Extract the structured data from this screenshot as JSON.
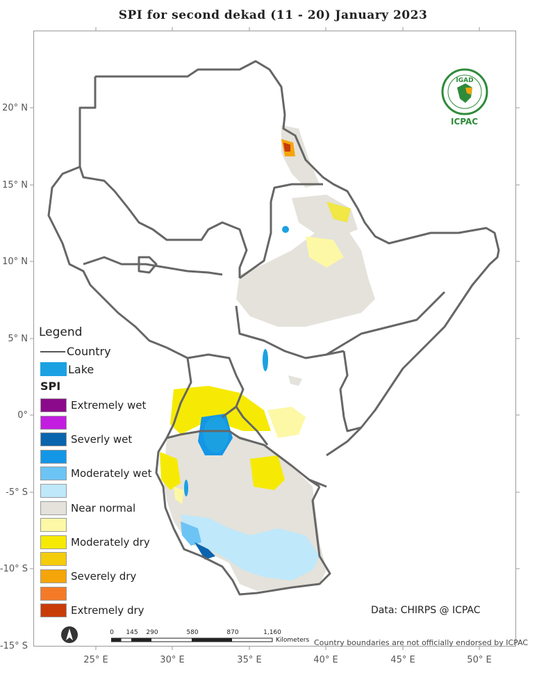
{
  "title": "SPI   for    second  dekad (11 - 20)  January 2023",
  "lat_labels": [
    "20° N",
    "15° N",
    "10° N",
    "5° N",
    "0°",
    "-5° S",
    "-10° S",
    "-15° S"
  ],
  "lon_labels": [
    "25° E",
    "30° E",
    "35° E",
    "40° E",
    "45° E",
    "50° E"
  ],
  "legend": {
    "title": "Legend",
    "country": "Country",
    "lake": "Lake",
    "spi_title": "SPI",
    "classes": [
      {
        "label": "Extremely wet",
        "color": "#8b0a8b"
      },
      {
        "label": "",
        "color": "#c31ee0"
      },
      {
        "label": "Severly wet",
        "color": "#0a64ae"
      },
      {
        "label": "",
        "color": "#1496e6"
      },
      {
        "label": "Moderately wet",
        "color": "#6cc4f5"
      },
      {
        "label": "",
        "color": "#bfe8fa"
      },
      {
        "label": "Near normal",
        "color": "#e4e2db"
      },
      {
        "label": "",
        "color": "#fcf8a6"
      },
      {
        "label": "Moderately dry",
        "color": "#f6ea05"
      },
      {
        "label": "",
        "color": "#f5cc0a"
      },
      {
        "label": "Severely dry",
        "color": "#f5a50a"
      },
      {
        "label": "",
        "color": "#f57a28"
      },
      {
        "label": "Extremely dry",
        "color": "#c83c0a"
      }
    ]
  },
  "credit": "Data: CHIRPS @ ICPAC",
  "disclaimer": "Country boundaries are not officially endorsed by ICPAC",
  "scale": {
    "ticks": [
      "0",
      "145",
      "290",
      "580",
      "870",
      "1,160"
    ],
    "unit": "Kilometers"
  },
  "logo": {
    "top_text": "IGAD",
    "bottom_text": "ICPAC"
  },
  "north_arrow_icon": "north-arrow-icon"
}
